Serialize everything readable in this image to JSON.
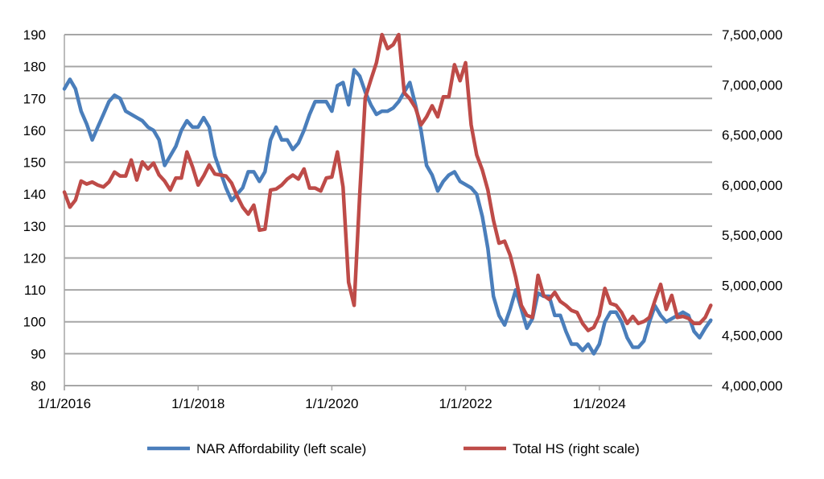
{
  "chart_data": {
    "type": "line",
    "title": "",
    "x_start": "2016-01",
    "x_frequency": "monthly",
    "x_tick_labels": [
      "1/1/2016",
      "1/1/2018",
      "1/1/2020",
      "1/1/2022",
      "1/1/2024"
    ],
    "left_axis": {
      "ylim": [
        80,
        190
      ],
      "step": 10,
      "tick_labels": [
        "80",
        "90",
        "100",
        "110",
        "120",
        "130",
        "140",
        "150",
        "160",
        "170",
        "180",
        "190"
      ]
    },
    "right_axis": {
      "ylim": [
        4000000,
        7500000
      ],
      "step": 500000,
      "tick_labels": [
        "4,000,000",
        "4,500,000",
        "5,000,000",
        "5,500,000",
        "6,000,000",
        "6,500,000",
        "7,000,000",
        "7,500,000"
      ]
    },
    "grid": true,
    "legend_position": "bottom",
    "series": [
      {
        "name": "NAR Affordability (left scale)",
        "axis": "left",
        "color": "#4a7ebb",
        "values": [
          173,
          176,
          173,
          166,
          162,
          157,
          161,
          165,
          169,
          171,
          170,
          166,
          165,
          164,
          163,
          161,
          160,
          157,
          149,
          152,
          155,
          160,
          163,
          161,
          161,
          164,
          161,
          152,
          147,
          142,
          138,
          140,
          142,
          147,
          147,
          144,
          147,
          157,
          161,
          157,
          157,
          154,
          156,
          160,
          165,
          169,
          169,
          169,
          166,
          174,
          175,
          168,
          179,
          177,
          172,
          168,
          165,
          166,
          166,
          167,
          169,
          172,
          175,
          168,
          160,
          149,
          146,
          141,
          144,
          146,
          147,
          144,
          143,
          142,
          140,
          133,
          123,
          108,
          102,
          99,
          104,
          110,
          104,
          98,
          101,
          109,
          108,
          108,
          102,
          102,
          97,
          93,
          93,
          91,
          93,
          90,
          93,
          100,
          103,
          103,
          100,
          95,
          92,
          92,
          94,
          100,
          105,
          102,
          100,
          101,
          102,
          103,
          102,
          97,
          95,
          98,
          100.5
        ]
      },
      {
        "name": "Total HS (right scale)",
        "axis": "right",
        "color": "#be4b48",
        "values": [
          5930000,
          5780000,
          5850000,
          6040000,
          6010000,
          6030000,
          6000000,
          5980000,
          6030000,
          6130000,
          6090000,
          6090000,
          6250000,
          6050000,
          6230000,
          6160000,
          6220000,
          6100000,
          6040000,
          5950000,
          6070000,
          6070000,
          6330000,
          6180000,
          6000000,
          6090000,
          6200000,
          6110000,
          6100000,
          6090000,
          6020000,
          5890000,
          5780000,
          5710000,
          5800000,
          5550000,
          5560000,
          5950000,
          5960000,
          6000000,
          6060000,
          6100000,
          6060000,
          6160000,
          5970000,
          5970000,
          5940000,
          6070000,
          6080000,
          6330000,
          5980000,
          5030000,
          4800000,
          5900000,
          6870000,
          7050000,
          7220000,
          7500000,
          7360000,
          7400000,
          7500000,
          6920000,
          6860000,
          6770000,
          6600000,
          6680000,
          6790000,
          6680000,
          6880000,
          6880000,
          7200000,
          7040000,
          7220000,
          6600000,
          6300000,
          6150000,
          5950000,
          5650000,
          5420000,
          5440000,
          5300000,
          5080000,
          4800000,
          4700000,
          4680000,
          5100000,
          4900000,
          4860000,
          4930000,
          4840000,
          4800000,
          4750000,
          4730000,
          4620000,
          4550000,
          4580000,
          4700000,
          4970000,
          4820000,
          4800000,
          4730000,
          4620000,
          4690000,
          4620000,
          4640000,
          4680000,
          4850000,
          5010000,
          4760000,
          4900000,
          4680000,
          4690000,
          4670000,
          4620000,
          4620000,
          4680000,
          4800000
        ]
      }
    ]
  }
}
